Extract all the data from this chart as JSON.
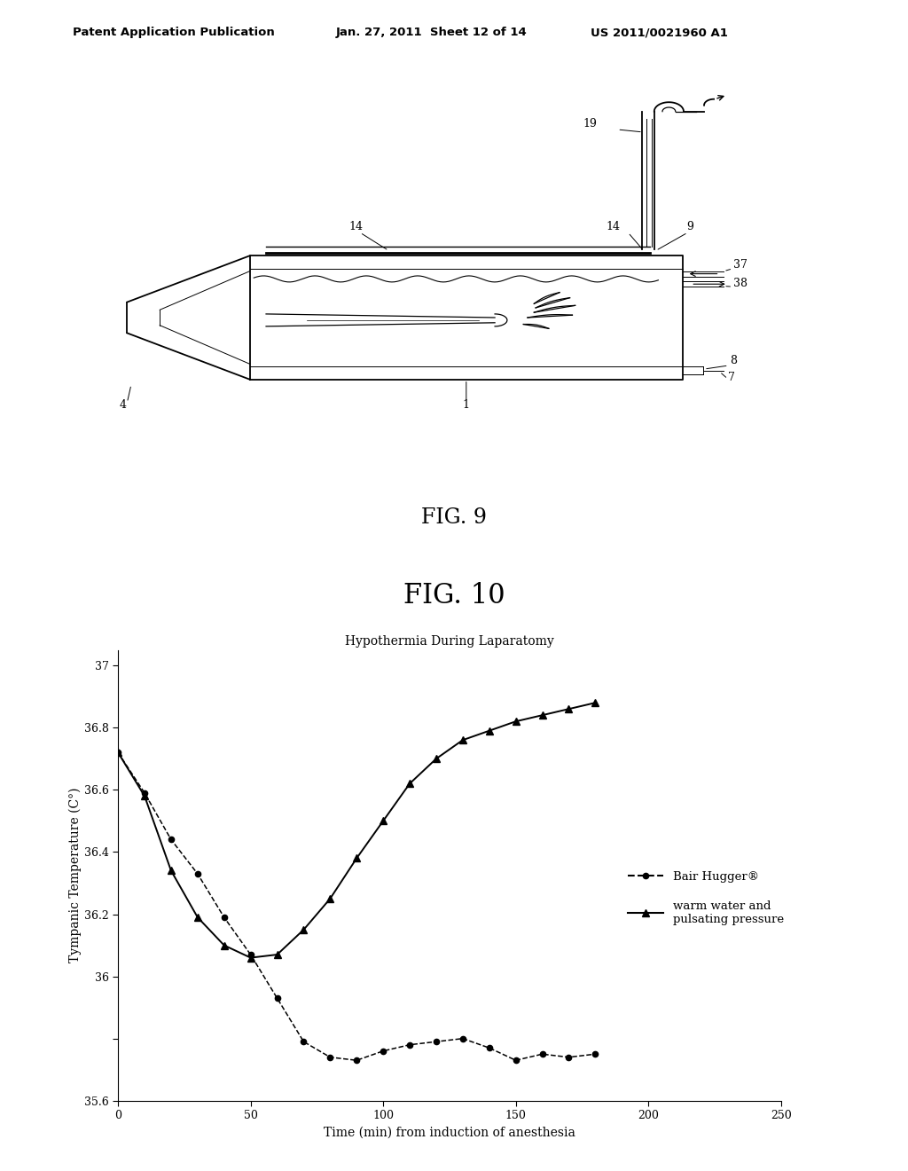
{
  "header_left": "Patent Application Publication",
  "header_mid": "Jan. 27, 2011  Sheet 12 of 14",
  "header_right": "US 2011/0021960 A1",
  "fig9_title": "FIG. 9",
  "fig10_title": "FIG. 10",
  "chart_title": "Hypothermia During Laparatomy",
  "xlabel": "Time (min) from induction of anesthesia",
  "ylabel": "Tympanic Temperature (C°)",
  "xlim": [
    0,
    250
  ],
  "ylim": [
    35.6,
    37.05
  ],
  "yticks": [
    35.6,
    35.8,
    36.0,
    36.2,
    36.4,
    36.6,
    36.8,
    37.0
  ],
  "ytick_labels": [
    "35.6",
    "",
    "36",
    "36.2",
    "36.4",
    "36.6",
    "36.8",
    "37"
  ],
  "xticks": [
    0,
    50,
    100,
    150,
    200,
    250
  ],
  "bair_hugger_x": [
    0,
    10,
    20,
    30,
    40,
    50,
    60,
    70,
    80,
    90,
    100,
    110,
    120,
    130,
    140,
    150,
    160,
    170,
    180
  ],
  "bair_hugger_y": [
    36.72,
    36.59,
    36.44,
    36.33,
    36.19,
    36.07,
    35.93,
    35.79,
    35.74,
    35.73,
    35.76,
    35.78,
    35.79,
    35.8,
    35.77,
    35.73,
    35.75,
    35.74,
    35.75
  ],
  "warm_water_x": [
    0,
    10,
    20,
    30,
    40,
    50,
    60,
    70,
    80,
    90,
    100,
    110,
    120,
    130,
    140,
    150,
    160,
    170,
    180
  ],
  "warm_water_y": [
    36.72,
    36.58,
    36.34,
    36.19,
    36.1,
    36.06,
    36.07,
    36.15,
    36.25,
    36.38,
    36.5,
    36.62,
    36.7,
    36.76,
    36.79,
    36.82,
    36.84,
    36.86,
    36.88
  ],
  "legend_bair": "Bair Hugger®",
  "legend_warm": "warm water and\npulsating pressure",
  "bg_color": "#ffffff",
  "line_color": "#000000"
}
